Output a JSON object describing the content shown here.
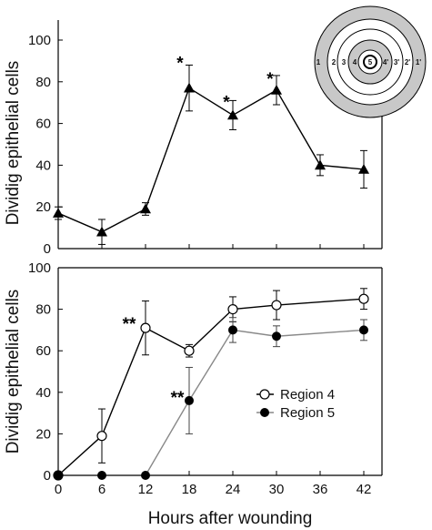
{
  "chart_data": [
    {
      "type": "line",
      "panel": "top",
      "ylabel": "Dividig epithelial cells",
      "xlabel": "",
      "ylim": [
        0,
        100
      ],
      "yticks": [
        0,
        20,
        40,
        60,
        80,
        100
      ],
      "xlim": [
        0,
        42
      ],
      "series": [
        {
          "marker": "triangle",
          "color": "#000000",
          "x": [
            0,
            6,
            12,
            18,
            24,
            30,
            36,
            42
          ],
          "y": [
            17,
            8,
            19,
            77,
            64,
            76,
            40,
            38
          ],
          "err": [
            3,
            6,
            3,
            11,
            7,
            7,
            5,
            9
          ]
        }
      ],
      "annotations": [
        {
          "text": "*",
          "x": 18
        },
        {
          "text": "*",
          "x": 24
        },
        {
          "text": "*",
          "x": 30
        }
      ],
      "inset": {
        "ring_labels": [
          "1",
          "2",
          "3",
          "4",
          "5",
          "4'",
          "3'",
          "2'",
          "1'"
        ]
      }
    },
    {
      "type": "line",
      "panel": "bottom",
      "ylabel": "Dividig epithelial cells",
      "xlabel": "Hours after wounding",
      "ylim": [
        0,
        100
      ],
      "yticks": [
        0,
        20,
        40,
        60,
        80,
        100
      ],
      "xticks": [
        0,
        6,
        12,
        18,
        24,
        30,
        36,
        42
      ],
      "xlim": [
        0,
        42
      ],
      "series": [
        {
          "name": "Region 4",
          "marker": "open-circle",
          "color": "#000000",
          "x": [
            0,
            6,
            12,
            18,
            24,
            30,
            42
          ],
          "y": [
            0,
            19,
            71,
            60,
            80,
            82,
            85
          ],
          "err": [
            0,
            13,
            13,
            3,
            6,
            7,
            5
          ]
        },
        {
          "name": "Region 5",
          "marker": "filled-circle",
          "color": "#888888",
          "x": [
            0,
            6,
            12,
            18,
            24,
            30,
            42
          ],
          "y": [
            0,
            0,
            0,
            36,
            70,
            67,
            70
          ],
          "err": [
            0,
            0,
            0,
            16,
            6,
            5,
            5
          ]
        }
      ],
      "annotations": [
        {
          "text": "**",
          "x": 12
        },
        {
          "text": "**",
          "x": 18
        }
      ],
      "legend": "center-right"
    }
  ]
}
